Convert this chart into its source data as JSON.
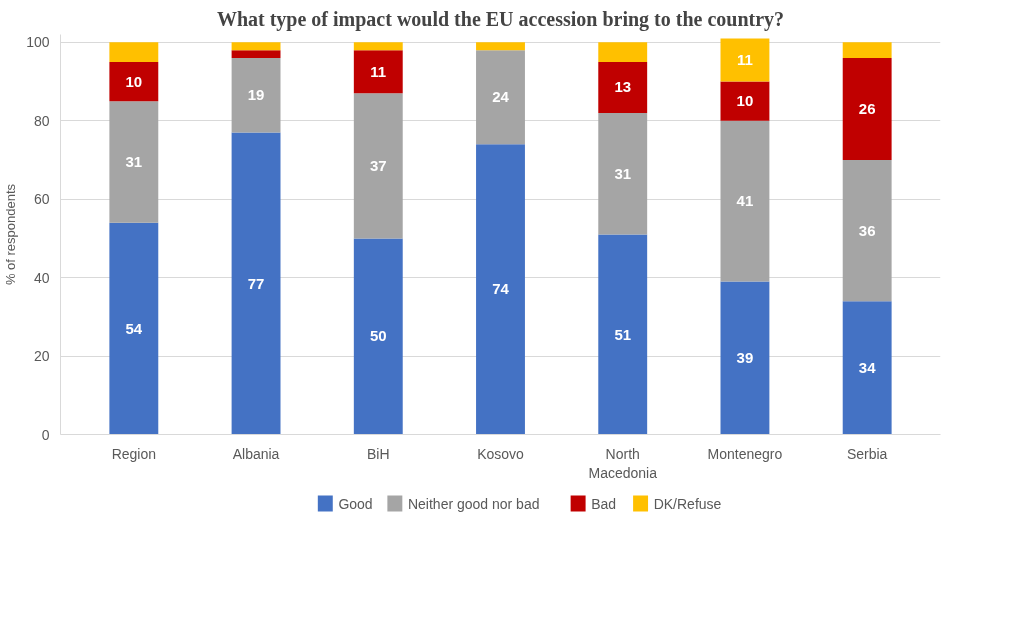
{
  "chart_data": {
    "type": "bar",
    "title": "What type of impact would the EU accession bring to the country?",
    "ylabel": "% of respondents",
    "categories": [
      "Region",
      "Albania",
      "BiH",
      "Kosovo",
      "North Macedonia",
      "Montenegro",
      "Serbia"
    ],
    "stacked": true,
    "ylim": [
      0,
      102
    ],
    "yticks": [
      0,
      20,
      40,
      60,
      80,
      100
    ],
    "grid": "y",
    "legend": "bottom",
    "series": [
      {
        "name": "Good",
        "color": "#4472c4",
        "values": [
          54,
          77,
          50,
          74,
          51,
          39,
          34
        ],
        "value_labels": [
          "54",
          "77",
          "50",
          "74",
          "51",
          "39",
          "34"
        ]
      },
      {
        "name": "Neither good nor bad",
        "color": "#a5a5a5",
        "values": [
          31,
          19,
          37,
          24,
          31,
          41,
          36
        ],
        "value_labels": [
          "31",
          "19",
          "37",
          "24",
          "31",
          "41",
          "36"
        ]
      },
      {
        "name": "Bad",
        "color": "#c00000",
        "values": [
          10,
          2,
          11,
          0,
          13,
          10,
          26
        ],
        "value_labels": [
          "10",
          null,
          "11",
          null,
          "13",
          "10",
          "26"
        ]
      },
      {
        "name": "DK/Refuse",
        "color": "#ffc000",
        "values": [
          5,
          2,
          2,
          2,
          5,
          11,
          4
        ],
        "value_labels": [
          null,
          null,
          null,
          null,
          null,
          "11",
          null
        ]
      }
    ]
  }
}
